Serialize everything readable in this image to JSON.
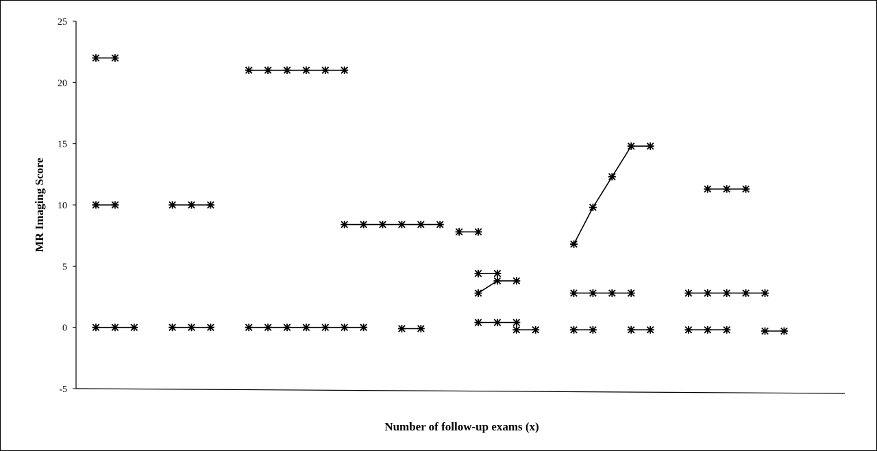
{
  "chart_data": {
    "type": "line",
    "title": "",
    "xlabel": "Number of follow-up exams (x)",
    "ylabel": "MR Imaging Score",
    "ylim": [
      -5,
      25
    ],
    "yticks": [
      25,
      20,
      15,
      10,
      5,
      0,
      -5
    ],
    "grid": false,
    "legend": "none",
    "marker": "asterisk",
    "color": "#000000",
    "x_note": "follow-up exam index (unlabeled axis)",
    "series": [
      {
        "values": [
          [
            1,
            22
          ],
          [
            2,
            22
          ]
        ]
      },
      {
        "values": [
          [
            1,
            10
          ],
          [
            2,
            10
          ]
        ]
      },
      {
        "values": [
          [
            1,
            0
          ],
          [
            2,
            0
          ],
          [
            3,
            0
          ]
        ]
      },
      {
        "values": [
          [
            5,
            10
          ],
          [
            6,
            10
          ],
          [
            7,
            10
          ]
        ]
      },
      {
        "values": [
          [
            5,
            0
          ],
          [
            6,
            0
          ],
          [
            7,
            0
          ]
        ]
      },
      {
        "values": [
          [
            9,
            21
          ],
          [
            10,
            21
          ],
          [
            11,
            21
          ],
          [
            12,
            21
          ],
          [
            13,
            21
          ],
          [
            14,
            21
          ]
        ]
      },
      {
        "values": [
          [
            9,
            0
          ],
          [
            10,
            0
          ],
          [
            11,
            0
          ],
          [
            12,
            0
          ],
          [
            13,
            0
          ],
          [
            14,
            0
          ],
          [
            15,
            0
          ]
        ]
      },
      {
        "values": [
          [
            14,
            8.4
          ],
          [
            15,
            8.4
          ],
          [
            16,
            8.4
          ],
          [
            17,
            8.4
          ],
          [
            18,
            8.4
          ],
          [
            19,
            8.4
          ]
        ]
      },
      {
        "values": [
          [
            17,
            -0.1
          ],
          [
            18,
            -0.1
          ]
        ]
      },
      {
        "values": [
          [
            20,
            7.8
          ],
          [
            21,
            7.8
          ]
        ]
      },
      {
        "values": [
          [
            21,
            4.4
          ],
          [
            22,
            4.4
          ]
        ]
      },
      {
        "values": [
          [
            21,
            2.8
          ],
          [
            22,
            3.8
          ],
          [
            23,
            3.8
          ]
        ]
      },
      {
        "values": [
          [
            21,
            0.4
          ],
          [
            22,
            0.4
          ],
          [
            23,
            0.4
          ]
        ]
      },
      {
        "values": [
          [
            23,
            -0.2
          ],
          [
            24,
            -0.2
          ]
        ]
      },
      {
        "values": [
          [
            26,
            6.8
          ],
          [
            27,
            9.8
          ],
          [
            28,
            12.3
          ],
          [
            29,
            14.8
          ],
          [
            30,
            14.8
          ]
        ]
      },
      {
        "values": [
          [
            26,
            2.8
          ],
          [
            27,
            2.8
          ],
          [
            28,
            2.8
          ],
          [
            29,
            2.8
          ]
        ]
      },
      {
        "values": [
          [
            26,
            -0.2
          ],
          [
            27,
            -0.2
          ]
        ]
      },
      {
        "values": [
          [
            29,
            -0.2
          ],
          [
            30,
            -0.2
          ]
        ]
      },
      {
        "values": [
          [
            32,
            -0.2
          ],
          [
            33,
            -0.2
          ],
          [
            34,
            -0.2
          ]
        ]
      },
      {
        "values": [
          [
            33,
            11.3
          ],
          [
            34,
            11.3
          ],
          [
            35,
            11.3
          ]
        ]
      },
      {
        "values": [
          [
            32,
            2.8
          ],
          [
            33,
            2.8
          ],
          [
            34,
            2.8
          ],
          [
            35,
            2.8
          ],
          [
            36,
            2.8
          ]
        ]
      },
      {
        "values": [
          [
            36,
            -0.3
          ],
          [
            37,
            -0.3
          ]
        ]
      }
    ]
  }
}
